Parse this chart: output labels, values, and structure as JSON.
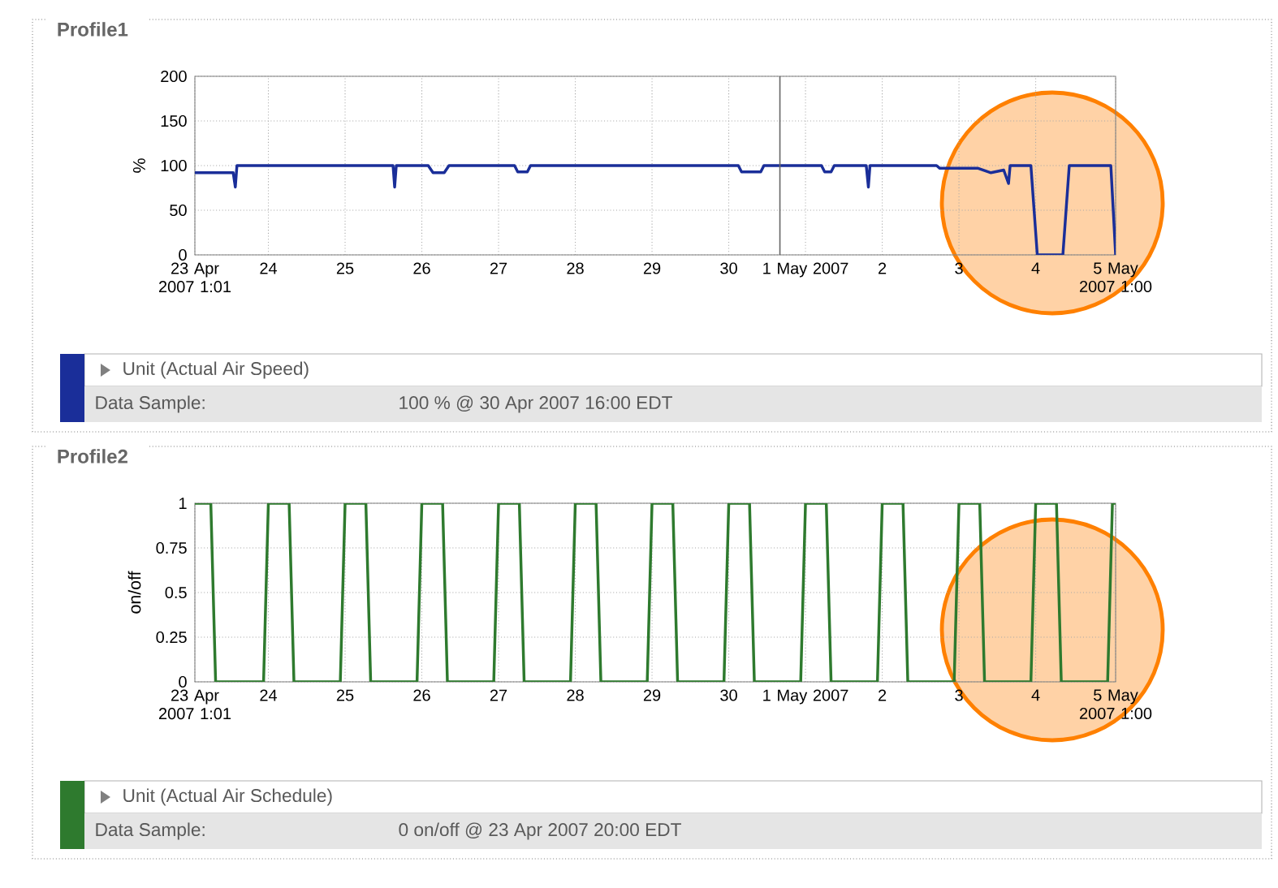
{
  "chart_data": [
    {
      "type": "line",
      "title": "Profile1",
      "ylabel": "%",
      "series": [
        {
          "name": "Unit (Actual Air Speed)",
          "color": "#1a2e99",
          "x": [
            "2007-04-23T01:01",
            "2007-04-23T13:00",
            "2007-04-23T13:40",
            "2007-04-23T14:10",
            "2007-04-25T15:00",
            "2007-04-25T15:30",
            "2007-04-25T16:00",
            "2007-04-26T02:00",
            "2007-04-26T03:30",
            "2007-04-26T07:00",
            "2007-04-26T08:30",
            "2007-04-27T05:00",
            "2007-04-27T06:00",
            "2007-04-27T09:00",
            "2007-04-27T10:00",
            "2007-04-30T03:00",
            "2007-04-30T04:00",
            "2007-04-30T10:00",
            "2007-04-30T11:00",
            "2007-05-01T05:00",
            "2007-05-01T06:00",
            "2007-05-01T08:00",
            "2007-05-01T09:00",
            "2007-05-01T19:00",
            "2007-05-01T19:40",
            "2007-05-01T20:10",
            "2007-05-02T17:00",
            "2007-05-02T18:00",
            "2007-05-03T06:00",
            "2007-05-03T10:00",
            "2007-05-03T14:00",
            "2007-05-03T15:30",
            "2007-05-03T16:00",
            "2007-05-03T22:30",
            "2007-05-04T00:30",
            "2007-05-04T08:30",
            "2007-05-04T10:30",
            "2007-05-04T23:30",
            "2007-05-05T01:00"
          ],
          "values": [
            92,
            92,
            76,
            100,
            100,
            76,
            100,
            100,
            92,
            92,
            100,
            100,
            93,
            93,
            100,
            100,
            93,
            93,
            100,
            100,
            93,
            93,
            100,
            100,
            76,
            100,
            100,
            97,
            97,
            92,
            95,
            80,
            100,
            100,
            0,
            0,
            100,
            100,
            0
          ]
        }
      ],
      "xlim": [
        "2007-04-23T01:01",
        "2007-05-05T01:00"
      ],
      "xticks": [
        {
          "value": "2007-04-23T01:01",
          "label": "23 Apr 2007 1:01"
        },
        {
          "value": "2007-04-24T00:00",
          "label": "24"
        },
        {
          "value": "2007-04-25T00:00",
          "label": "25"
        },
        {
          "value": "2007-04-26T00:00",
          "label": "26"
        },
        {
          "value": "2007-04-27T00:00",
          "label": "27"
        },
        {
          "value": "2007-04-28T00:00",
          "label": "28"
        },
        {
          "value": "2007-04-29T00:00",
          "label": "29"
        },
        {
          "value": "2007-04-30T00:00",
          "label": "30"
        },
        {
          "value": "2007-05-01T00:00",
          "label": "1 May 2007"
        },
        {
          "value": "2007-05-02T00:00",
          "label": "2"
        },
        {
          "value": "2007-05-03T00:00",
          "label": "3"
        },
        {
          "value": "2007-05-04T00:00",
          "label": "4"
        },
        {
          "value": "2007-05-05T01:00",
          "label": "5 May 2007 1:00"
        }
      ],
      "ylim": [
        0,
        200
      ],
      "yticks": [
        0,
        50,
        100,
        150,
        200
      ],
      "grid": true,
      "legend": "bottom",
      "ref_lines": [
        {
          "axis": "x",
          "value": "2007-04-30T16:00",
          "color": "#666666"
        }
      ],
      "annotations": [
        "Data Sample:",
        "100 % @ 30 Apr 2007 16:00 EDT"
      ]
    },
    {
      "type": "line",
      "title": "Profile2",
      "ylabel": "on/off",
      "series": [
        {
          "name": "Unit (Actual Air Schedule)",
          "color": "#2e7a2e",
          "x": [
            "2007-04-23T01:01",
            "2007-04-23T06:00",
            "2007-04-23T07:30",
            "2007-04-23T22:30",
            "2007-04-24T00:00",
            "2007-04-24T06:30",
            "2007-04-24T08:00",
            "2007-04-24T22:30",
            "2007-04-25T00:00",
            "2007-04-25T06:30",
            "2007-04-25T08:00",
            "2007-04-25T22:30",
            "2007-04-26T00:00",
            "2007-04-26T06:30",
            "2007-04-26T08:00",
            "2007-04-26T22:30",
            "2007-04-27T00:00",
            "2007-04-27T06:30",
            "2007-04-27T08:00",
            "2007-04-27T22:30",
            "2007-04-28T00:00",
            "2007-04-28T06:30",
            "2007-04-28T08:00",
            "2007-04-28T22:30",
            "2007-04-29T00:00",
            "2007-04-29T06:30",
            "2007-04-29T08:00",
            "2007-04-29T22:30",
            "2007-04-30T00:00",
            "2007-04-30T06:30",
            "2007-04-30T08:00",
            "2007-04-30T22:30",
            "2007-05-01T00:00",
            "2007-05-01T06:30",
            "2007-05-01T08:00",
            "2007-05-01T22:30",
            "2007-05-02T00:00",
            "2007-05-02T06:30",
            "2007-05-02T08:00",
            "2007-05-02T22:30",
            "2007-05-03T00:00",
            "2007-05-03T06:30",
            "2007-05-03T08:00",
            "2007-05-03T22:30",
            "2007-05-04T00:00",
            "2007-05-04T06:30",
            "2007-05-04T08:00",
            "2007-05-04T22:30",
            "2007-05-05T00:00",
            "2007-05-05T01:00"
          ],
          "values": [
            1,
            1,
            0,
            0,
            1,
            1,
            0,
            0,
            1,
            1,
            0,
            0,
            1,
            1,
            0,
            0,
            1,
            1,
            0,
            0,
            1,
            1,
            0,
            0,
            1,
            1,
            0,
            0,
            1,
            1,
            0,
            0,
            1,
            1,
            0,
            0,
            1,
            1,
            0,
            0,
            1,
            1,
            0,
            0,
            1,
            1,
            0,
            0,
            1,
            1
          ]
        }
      ],
      "xlim": [
        "2007-04-23T01:01",
        "2007-05-05T01:00"
      ],
      "xticks": [
        {
          "value": "2007-04-23T01:01",
          "label": "23 Apr 2007 1:01"
        },
        {
          "value": "2007-04-24T00:00",
          "label": "24"
        },
        {
          "value": "2007-04-25T00:00",
          "label": "25"
        },
        {
          "value": "2007-04-26T00:00",
          "label": "26"
        },
        {
          "value": "2007-04-27T00:00",
          "label": "27"
        },
        {
          "value": "2007-04-28T00:00",
          "label": "28"
        },
        {
          "value": "2007-04-29T00:00",
          "label": "29"
        },
        {
          "value": "2007-04-30T00:00",
          "label": "30"
        },
        {
          "value": "2007-05-01T00:00",
          "label": "1 May 2007"
        },
        {
          "value": "2007-05-02T00:00",
          "label": "2"
        },
        {
          "value": "2007-05-03T00:00",
          "label": "3"
        },
        {
          "value": "2007-05-04T00:00",
          "label": "4"
        },
        {
          "value": "2007-05-05T01:00",
          "label": "5 May 2007 1:00"
        }
      ],
      "ylim": [
        0,
        1
      ],
      "yticks": [
        0,
        0.25,
        0.5,
        0.75,
        1
      ],
      "grid": true,
      "legend": "bottom",
      "annotations": [
        "Data Sample:",
        "0 on/off @ 23 Apr 2007 20:00 EDT"
      ]
    }
  ]
}
